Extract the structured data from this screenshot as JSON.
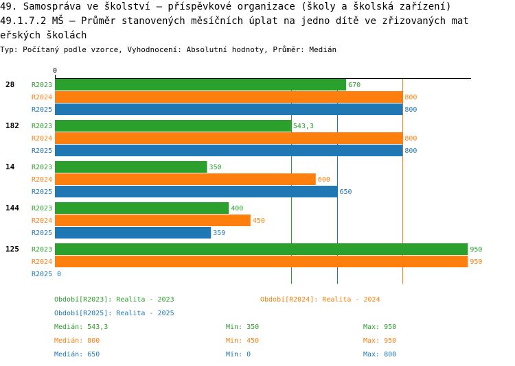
{
  "title_lines": [
    "49. Samospráva ve školství – příspěvkové organizace (školy a školská zařízení)",
    "49.1.7.2 MŠ – Průměr stanovených měsíčních úplat na jedno dítě ve zřizovaných mat",
    "eřských školách"
  ],
  "subtitle": "Typ: Počítaný podle vzorce, Vyhodnocení: Absolutní hodnoty, Průměr: Medián",
  "colors": {
    "R2023": "#2ca02c",
    "R2024": "#ff7f0e",
    "R2025": "#1f77b4"
  },
  "chart_data": {
    "type": "bar",
    "orientation": "horizontal",
    "axis_zero_label": "0",
    "xlim": [
      0,
      1000
    ],
    "categories": [
      "28",
      "182",
      "14",
      "144",
      "125"
    ],
    "series": [
      {
        "name": "R2023",
        "values": [
          670,
          543.3,
          350,
          400,
          950
        ],
        "labels": [
          "670",
          "543,3",
          "350",
          "400",
          "950"
        ]
      },
      {
        "name": "R2024",
        "values": [
          800,
          800,
          600,
          450,
          950
        ],
        "labels": [
          "800",
          "800",
          "600",
          "450",
          "950"
        ]
      },
      {
        "name": "R2025",
        "values": [
          800,
          800,
          650,
          359,
          0
        ],
        "labels": [
          "800",
          "800",
          "650",
          "359",
          "0"
        ]
      }
    ],
    "reference_lines": [
      {
        "series": "R2023",
        "value": 543.3
      },
      {
        "series": "R2024",
        "value": 800
      },
      {
        "series": "R2025",
        "value": 650
      }
    ]
  },
  "legend": [
    {
      "series": "R2023",
      "label": "Období[R2023]: Realita - 2023"
    },
    {
      "series": "R2024",
      "label": "Období[R2024]: Realita - 2024"
    },
    {
      "series": "R2025",
      "label": "Období[R2025]: Realita - 2025"
    }
  ],
  "stats": [
    {
      "series": "R2023",
      "median": "Medián: 543,3",
      "min": "Min: 350",
      "max": "Max: 950"
    },
    {
      "series": "R2024",
      "median": "Medián: 800",
      "min": "Min: 450",
      "max": "Max: 950"
    },
    {
      "series": "R2025",
      "median": "Medián: 650",
      "min": "Min: 0",
      "max": "Max: 800"
    }
  ]
}
